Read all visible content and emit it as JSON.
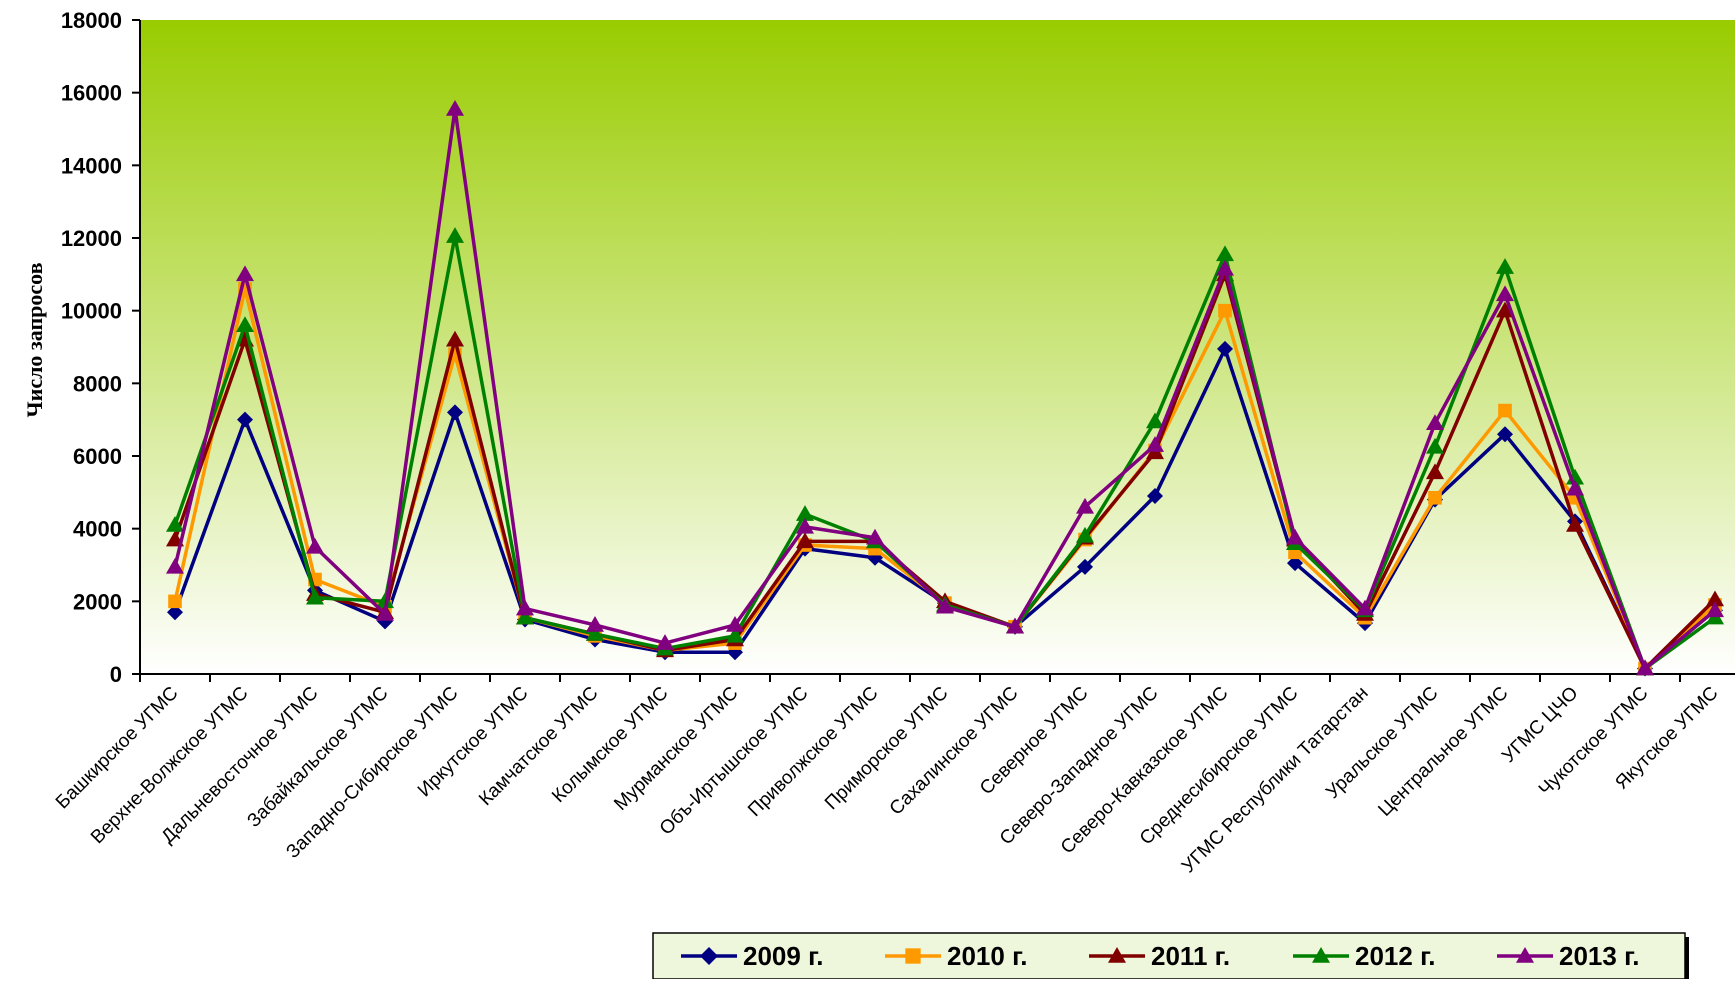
{
  "chart_data": {
    "type": "line",
    "ylabel": "Число запросов",
    "xlabel": "",
    "ylim": [
      0,
      18000
    ],
    "yticks": [
      0,
      2000,
      4000,
      6000,
      8000,
      10000,
      12000,
      14000,
      16000,
      18000
    ],
    "background": {
      "top_color": "#99cc00",
      "bottom_color": "#ffffff",
      "style": "vertical gradient"
    },
    "legend_position": "bottom-right",
    "categories": [
      "Башкирское УГМС",
      "Верхне-Волжское УГМС",
      "Дальневосточное УГМС",
      "Забайкальское УГМС",
      "Западно-Сибирское УГМС",
      "Иркутское УГМС",
      "Камчатское УГМС",
      "Колымское УГМС",
      "Мурманское УГМС",
      "Объ-Иртышское УГМС",
      "Приволжское УГМС",
      "Приморское УГМС",
      "Сахалинское УГМС",
      "Северное УГМС",
      "Северо-Западное УГМС",
      "Северо-Кавказское УГМС",
      "Среднесибирское УГМС",
      "УГМС Республики Татарстан",
      "Уральское УГМС",
      "Центральное УГМС",
      "УГМС ЦЧО",
      "Чукотское УГМС",
      "Якутское УГМС"
    ],
    "series": [
      {
        "name": "2009 г.",
        "color": "#000080",
        "marker": "diamond",
        "values": [
          1700,
          7000,
          2300,
          1450,
          7200,
          1500,
          950,
          600,
          600,
          3450,
          3200,
          1950,
          1300,
          2950,
          4900,
          8950,
          3050,
          1400,
          4800,
          6600,
          4200,
          150,
          1750
        ]
      },
      {
        "name": "2010 г.",
        "color": "#ff9900",
        "marker": "square",
        "values": [
          2000,
          10600,
          2600,
          1850,
          8800,
          1550,
          1050,
          650,
          850,
          3550,
          3450,
          1950,
          1300,
          3700,
          6150,
          10000,
          3350,
          1550,
          4850,
          7250,
          4850,
          150,
          1900
        ]
      },
      {
        "name": "2011 г.",
        "color": "#800000",
        "marker": "triangle",
        "values": [
          3700,
          9200,
          2200,
          1700,
          9200,
          1550,
          1100,
          650,
          950,
          3650,
          3650,
          2000,
          1300,
          3750,
          6100,
          11000,
          3700,
          1650,
          5550,
          10000,
          4100,
          150,
          2050
        ]
      },
      {
        "name": "2012 г.",
        "color": "#008000",
        "marker": "triangle",
        "values": [
          4100,
          9600,
          2100,
          2000,
          12050,
          1550,
          1100,
          700,
          1050,
          4400,
          3650,
          1900,
          1300,
          3800,
          6950,
          11550,
          3600,
          1750,
          6250,
          11200,
          5400,
          150,
          1550
        ]
      },
      {
        "name": "2013 г.",
        "color": "#800080",
        "marker": "triangle",
        "values": [
          2950,
          11000,
          3500,
          1650,
          15550,
          1800,
          1350,
          850,
          1350,
          4050,
          3750,
          1850,
          1300,
          4600,
          6300,
          11150,
          3750,
          1800,
          6900,
          10450,
          5100,
          150,
          1750
        ]
      }
    ]
  }
}
